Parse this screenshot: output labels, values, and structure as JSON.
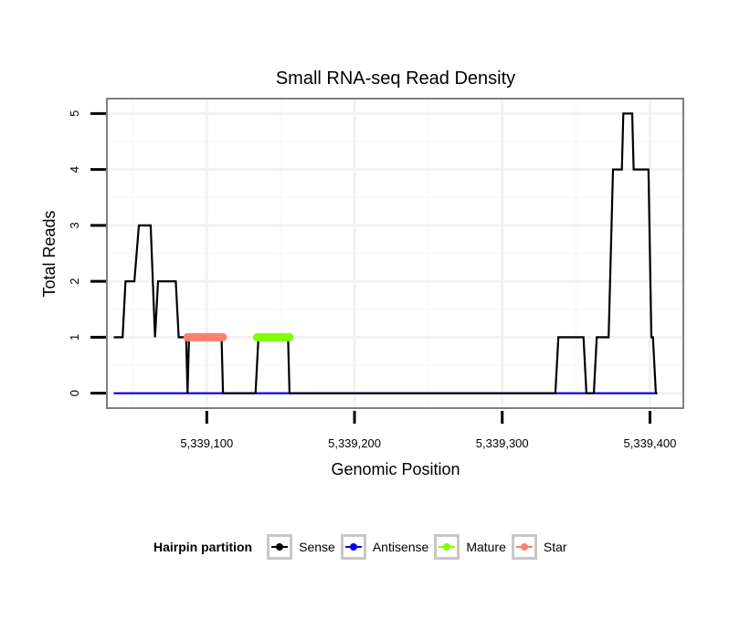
{
  "chart_data": {
    "type": "line",
    "title": "Small RNA-seq Read Density",
    "xlabel": "Genomic Position",
    "ylabel": "Total Reads",
    "xlim": [
      5339033,
      5339422
    ],
    "ylim": [
      -0.25,
      5.25
    ],
    "x_ticks": [
      5339100,
      5339200,
      5339300,
      5339400
    ],
    "x_tick_labels": [
      "5,339,100",
      "5,339,200",
      "5,339,300",
      "5,339,400"
    ],
    "y_ticks": [
      0,
      1,
      2,
      3,
      4,
      5
    ],
    "y_tick_labels": [
      "0",
      "1",
      "2",
      "3",
      "4",
      "5"
    ],
    "grid": true,
    "legend": {
      "title": "Hairpin partition",
      "placement": "bottom",
      "entries": [
        {
          "name": "Sense",
          "color": "#000000"
        },
        {
          "name": "Antisense",
          "color": "#0000ff"
        },
        {
          "name": "Mature",
          "color": "#7fff00"
        },
        {
          "name": "Star",
          "color": "#fa8072"
        }
      ]
    },
    "series": [
      {
        "name": "Sense",
        "color": "#000000",
        "points": [
          [
            5339037,
            1
          ],
          [
            5339043,
            1
          ],
          [
            5339045,
            2
          ],
          [
            5339051,
            2
          ],
          [
            5339054,
            3
          ],
          [
            5339062,
            3
          ],
          [
            5339065,
            1
          ],
          [
            5339067,
            2
          ],
          [
            5339079,
            2
          ],
          [
            5339081,
            1
          ],
          [
            5339086,
            1
          ],
          [
            5339087,
            0
          ],
          [
            5339088,
            1
          ],
          [
            5339110,
            1
          ],
          [
            5339111,
            0
          ],
          [
            5339133,
            0
          ],
          [
            5339135,
            1
          ],
          [
            5339155,
            1
          ],
          [
            5339156,
            0
          ],
          [
            5339336,
            0
          ],
          [
            5339338,
            1
          ],
          [
            5339355,
            1
          ],
          [
            5339357,
            0
          ],
          [
            5339362,
            0
          ],
          [
            5339364,
            1
          ],
          [
            5339372,
            1
          ],
          [
            5339375,
            4
          ],
          [
            5339381,
            4
          ],
          [
            5339382,
            5
          ],
          [
            5339388,
            5
          ],
          [
            5339389,
            4
          ],
          [
            5339399,
            4
          ],
          [
            5339401,
            1
          ],
          [
            5339402,
            1
          ],
          [
            5339404,
            0
          ],
          [
            5339405,
            0
          ]
        ]
      },
      {
        "name": "Antisense",
        "color": "#0000ff",
        "points": [
          [
            5339037,
            0
          ],
          [
            5339405,
            0
          ]
        ]
      },
      {
        "name": "Mature",
        "color": "#7fff00",
        "points": [
          [
            5339134,
            1
          ],
          [
            5339156,
            1
          ]
        ]
      },
      {
        "name": "Star",
        "color": "#fa8072",
        "points": [
          [
            5339087,
            1
          ],
          [
            5339111,
            1
          ]
        ]
      }
    ]
  }
}
